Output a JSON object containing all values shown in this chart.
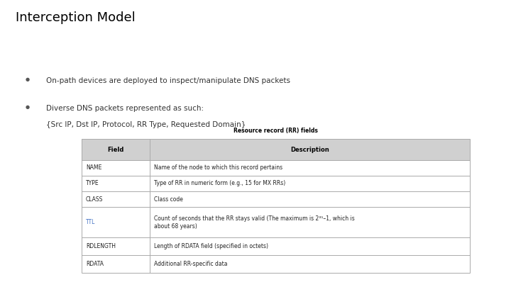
{
  "title": "Interception Model",
  "bullet1": "On-path devices are deployed to inspect/manipulate DNS packets",
  "bullet2": "Diverse DNS packets represented as such:",
  "bullet2b": "{Src IP, Dst IP, Protocol, RR Type, Requested Domain}",
  "table_title": "Resource record (RR) fields",
  "table_header": [
    "Field",
    "Description"
  ],
  "table_rows": [
    [
      "NAME",
      "Name of the node to which this record pertains"
    ],
    [
      "TYPE",
      "Type of RR in numeric form (e.g., 15 for MX RRs)"
    ],
    [
      "CLASS",
      "Class code"
    ],
    [
      "TTL",
      "Count of seconds that the RR stays valid (The maximum is 2³¹–1, which is\nabout 68 years)"
    ],
    [
      "RDLENGTH",
      "Length of RDATA field (specified in octets)"
    ],
    [
      "RDATA",
      "Additional RR-specific data"
    ]
  ],
  "ttl_color": "#4472C4",
  "background_color": "#ffffff",
  "title_fontsize": 13,
  "body_fontsize": 7.5,
  "table_fontsize": 5.5,
  "table_title_fontsize": 5.5,
  "bullet_fontsize": 5
}
